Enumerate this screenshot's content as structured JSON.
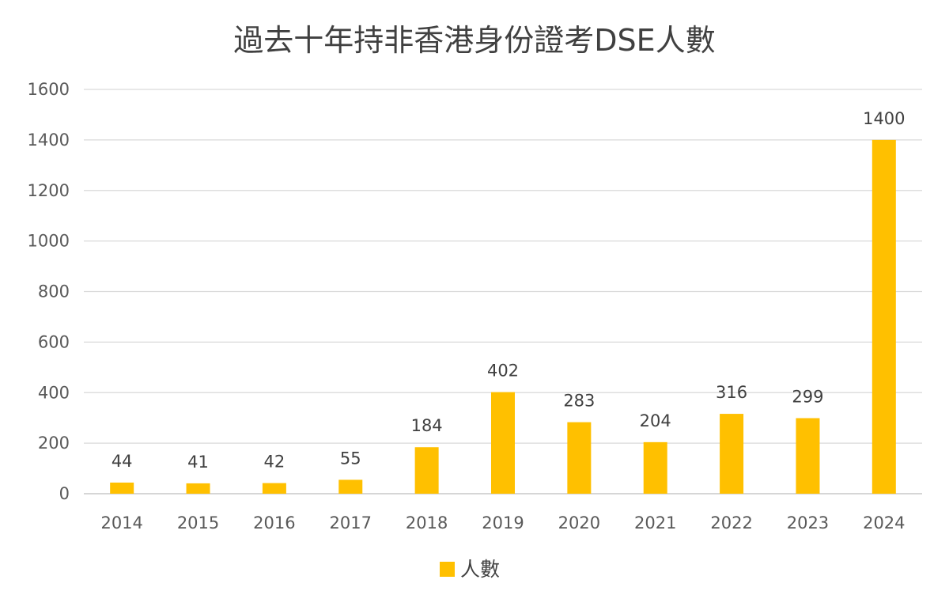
{
  "chart_data": {
    "type": "bar",
    "title": "過去十年持非香港身份證考DSE人數",
    "xlabel": "",
    "ylabel": "",
    "categories": [
      "2014",
      "2015",
      "2016",
      "2017",
      "2018",
      "2019",
      "2020",
      "2021",
      "2022",
      "2023",
      "2024"
    ],
    "series": [
      {
        "name": "人數",
        "values": [
          44,
          41,
          42,
          55,
          184,
          402,
          283,
          204,
          316,
          299,
          1400
        ],
        "color": "#FFC000"
      }
    ],
    "ylim": [
      0,
      1600
    ],
    "yticks": [
      "0",
      "200",
      "400",
      "600",
      "800",
      "1000",
      "1200",
      "1400",
      "1600"
    ],
    "grid": true,
    "data_labels": true,
    "legend_position": "bottom"
  }
}
